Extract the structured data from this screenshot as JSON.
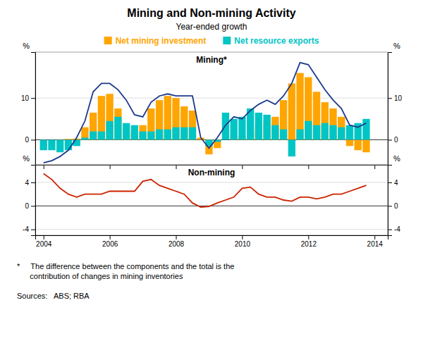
{
  "chart_data": [
    {
      "type": "bar",
      "title": "Mining and Non-mining Activity",
      "subtitle": "Year-ended growth",
      "annotations": [
        "Mining*"
      ],
      "ylabel": "%",
      "x": [
        2004.0,
        2004.25,
        2004.5,
        2004.75,
        2005.0,
        2005.25,
        2005.5,
        2005.75,
        2006.0,
        2006.25,
        2006.5,
        2006.75,
        2007.0,
        2007.25,
        2007.5,
        2007.75,
        2008.0,
        2008.25,
        2008.5,
        2008.75,
        2009.0,
        2009.25,
        2009.5,
        2009.75,
        2010.0,
        2010.25,
        2010.5,
        2010.75,
        2011.0,
        2011.25,
        2011.5,
        2011.75,
        2012.0,
        2012.25,
        2012.5,
        2012.75,
        2013.0,
        2013.25,
        2013.5,
        2013.75
      ],
      "series": [
        {
          "name": "Net mining investment",
          "color": "#FFA500",
          "values": [
            0.0,
            0.0,
            0.1,
            0.2,
            0.3,
            3.0,
            6.5,
            10.5,
            11.0,
            7.5,
            3.0,
            1.5,
            3.5,
            7.5,
            9.5,
            10.5,
            10.0,
            8.0,
            7.0,
            0.5,
            -3.5,
            -2.0,
            0.0,
            1.0,
            1.0,
            2.5,
            3.5,
            4.5,
            5.5,
            9.5,
            13.5,
            16.0,
            15.0,
            11.5,
            9.0,
            7.5,
            5.5,
            -1.5,
            -2.5,
            -3.0
          ]
        },
        {
          "name": "Net resource exports",
          "color": "#00C5C5",
          "values": [
            -2.5,
            -2.5,
            -3.0,
            -2.5,
            -1.5,
            0.5,
            2.0,
            2.0,
            4.5,
            5.5,
            4.0,
            3.5,
            2.0,
            2.0,
            2.5,
            2.5,
            3.0,
            3.0,
            3.0,
            0.0,
            -1.5,
            -0.5,
            6.5,
            5.0,
            5.5,
            7.5,
            6.5,
            6.0,
            3.5,
            2.5,
            -4.0,
            2.5,
            4.5,
            3.5,
            4.0,
            3.5,
            3.0,
            3.5,
            4.0,
            5.0
          ]
        },
        {
          "type": "line",
          "color": "#1C3A8C",
          "values": [
            -5.5,
            -5.0,
            -4.0,
            -2.5,
            0.5,
            4.5,
            11.5,
            13.5,
            13.5,
            12.0,
            9.5,
            6.0,
            5.5,
            9.0,
            10.5,
            11.0,
            10.5,
            10.5,
            10.5,
            0.5,
            -2.0,
            0.5,
            3.5,
            5.5,
            5.0,
            7.0,
            8.5,
            9.5,
            8.5,
            10.5,
            13.5,
            18.5,
            18.0,
            15.0,
            12.0,
            9.5,
            7.5,
            3.5,
            3.0,
            4.0
          ]
        }
      ],
      "xlim": [
        2003.75,
        2014.4
      ],
      "xticks": [
        2004,
        2006,
        2008,
        2010,
        2012,
        2014
      ],
      "ylim": [
        -6,
        21
      ],
      "yticks": [
        0,
        10
      ],
      "grid": true,
      "tick_labels": "y"
    },
    {
      "type": "line",
      "annotations": [
        "Non-mining",
        "*     The difference between the components and the total is the\n      contribution of changes in mining inventories",
        "Sources:   ABS; RBA"
      ],
      "ylabel": "%",
      "x": [
        2004.0,
        2004.25,
        2004.5,
        2004.75,
        2005.0,
        2005.25,
        2005.5,
        2005.75,
        2006.0,
        2006.25,
        2006.5,
        2006.75,
        2007.0,
        2007.25,
        2007.5,
        2007.75,
        2008.0,
        2008.25,
        2008.5,
        2008.75,
        2009.0,
        2009.25,
        2009.5,
        2009.75,
        2010.0,
        2010.25,
        2010.5,
        2010.75,
        2011.0,
        2011.25,
        2011.5,
        2011.75,
        2012.0,
        2012.25,
        2012.5,
        2012.75,
        2013.0,
        2013.25,
        2013.5,
        2013.75
      ],
      "series": [
        {
          "color": "#CC2200",
          "values": [
            5.5,
            4.5,
            3.0,
            2.0,
            1.5,
            2.0,
            2.0,
            2.0,
            2.5,
            2.5,
            2.5,
            2.5,
            4.2,
            4.5,
            3.5,
            3.0,
            2.5,
            2.0,
            0.5,
            -0.2,
            -0.1,
            0.5,
            1.0,
            1.5,
            3.0,
            3.2,
            2.0,
            1.5,
            1.5,
            1.0,
            0.8,
            1.5,
            1.5,
            1.2,
            1.5,
            2.0,
            2.0,
            2.5,
            3.0,
            3.5
          ]
        }
      ],
      "xlim": [
        2003.75,
        2014.4
      ],
      "xticks": [
        2004,
        2006,
        2008,
        2010,
        2012,
        2014
      ],
      "ylim": [
        -5,
        7
      ],
      "yticks": [
        -4,
        0,
        4
      ],
      "grid": true
    }
  ]
}
